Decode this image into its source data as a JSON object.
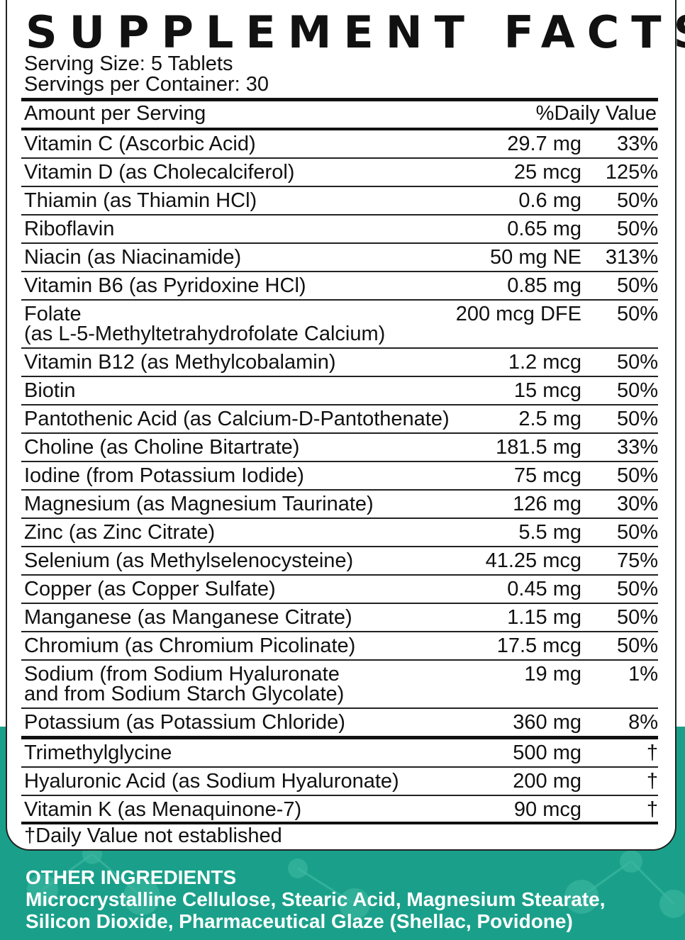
{
  "title": "SUPPLEMENT FACTS",
  "serving_size": "Serving Size: 5 Tablets",
  "servings_per_container": "Servings per Container: 30",
  "header": {
    "amount_per_serving": "Amount per Serving",
    "daily_value": "%Daily Value"
  },
  "nutrients": [
    {
      "name": "Vitamin C (Ascorbic Acid)",
      "amount": "29.7 mg",
      "dv": "33%"
    },
    {
      "name": "Vitamin D (as Cholecalciferol)",
      "amount": "25 mcg",
      "dv": "125%"
    },
    {
      "name": "Thiamin (as Thiamin HCl)",
      "amount": "0.6 mg",
      "dv": "50%"
    },
    {
      "name": "Riboflavin",
      "amount": "0.65 mg",
      "dv": "50%"
    },
    {
      "name": "Niacin (as Niacinamide)",
      "amount": "50 mg NE",
      "dv": "313%"
    },
    {
      "name": "Vitamin B6 (as Pyridoxine HCl)",
      "amount": "0.85 mg",
      "dv": "50%"
    },
    {
      "name": "Folate",
      "name2": "(as L-5-Methyltetrahydrofolate Calcium)",
      "amount": "200 mcg DFE",
      "dv": "50%"
    },
    {
      "name": "Vitamin B12 (as Methylcobalamin)",
      "amount": "1.2 mcg",
      "dv": "50%"
    },
    {
      "name": "Biotin",
      "amount": "15 mcg",
      "dv": "50%"
    },
    {
      "name": "Pantothenic Acid (as Calcium-D-Pantothenate)",
      "amount": "2.5 mg",
      "dv": "50%"
    },
    {
      "name": "Choline (as Choline Bitartrate)",
      "amount": "181.5 mg",
      "dv": "33%"
    },
    {
      "name": "Iodine (from Potassium Iodide)",
      "amount": "75 mcg",
      "dv": "50%"
    },
    {
      "name": "Magnesium (as Magnesium Taurinate)",
      "amount": "126 mg",
      "dv": "30%"
    },
    {
      "name": "Zinc (as Zinc Citrate)",
      "amount": "5.5 mg",
      "dv": "50%"
    },
    {
      "name": "Selenium (as Methylselenocysteine)",
      "amount": "41.25 mcg",
      "dv": "75%"
    },
    {
      "name": "Copper (as Copper Sulfate)",
      "amount": "0.45 mg",
      "dv": "50%"
    },
    {
      "name": "Manganese (as Manganese Citrate)",
      "amount": "1.15 mg",
      "dv": "50%"
    },
    {
      "name": "Chromium (as Chromium Picolinate)",
      "amount": "17.5 mcg",
      "dv": "50%"
    },
    {
      "name": "Sodium (from Sodium Hyaluronate",
      "name2": "and from Sodium Starch Glycolate)",
      "amount": "19 mg",
      "dv": "1%"
    },
    {
      "name": "Potassium (as Potassium Chloride)",
      "amount": "360 mg",
      "dv": "8%"
    }
  ],
  "others": [
    {
      "name": "Trimethylglycine",
      "amount": "500 mg",
      "dv": "†"
    },
    {
      "name": "Hyaluronic Acid (as Sodium Hyaluronate)",
      "amount": "200 mg",
      "dv": "†"
    },
    {
      "name": "Vitamin K (as Menaquinone-7)",
      "amount": "90 mcg",
      "dv": "†"
    }
  ],
  "footnote": "†Daily Value not established",
  "other_ingredients": {
    "heading": "OTHER INGREDIENTS",
    "line1": "Microcrystalline Cellulose, Stearic Acid, Magnesium Stearate,",
    "line2": "Silicon Dioxide, Pharmaceutical Glaze (Shellac, Povidone)"
  },
  "colors": {
    "teal": "#1aa08a",
    "text": "#111111"
  }
}
